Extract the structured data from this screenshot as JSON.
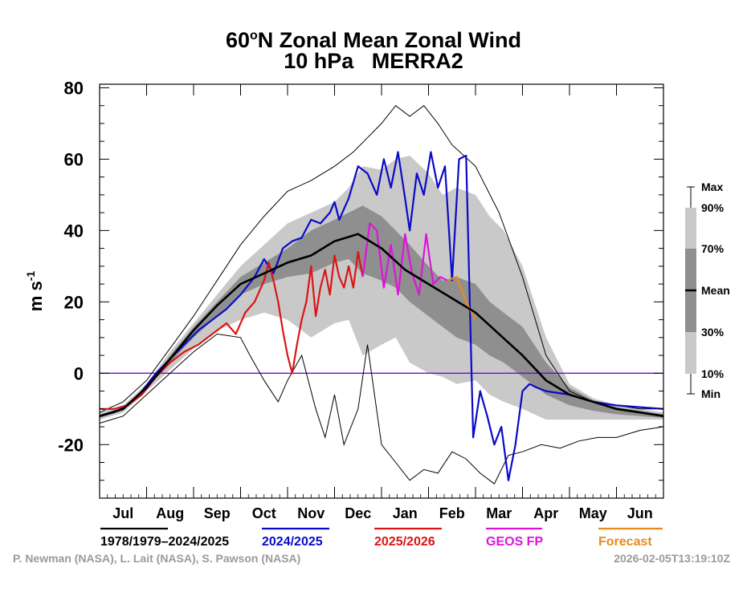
{
  "header": {
    "title_main": "60",
    "title_sup": "o",
    "title_rest": "N Zonal Mean Zonal Wind",
    "subtitle": "10 hPa   MERRA2"
  },
  "credits": {
    "authors": "P. Newman (NASA), L. Lait (NASA), S. Pawson (NASA)",
    "timestamp": "2026-02-05T13:19:10Z"
  },
  "colors": {
    "mean": "#000000",
    "climatology_line": "#000000",
    "season_2024": "#0a0ac8",
    "season_2025": "#dc1414",
    "geos_fp": "#dc14dc",
    "forecast": "#e68a1e",
    "zero_line": "#6a0dd6",
    "band_10_90": "#c9c9c9",
    "band_30_70": "#8f8f8f"
  },
  "chart_data": {
    "type": "line",
    "title": "60oN Zonal Mean Zonal Wind",
    "subtitle": "10 hPa   MERRA2",
    "ylabel": "m s-1",
    "ylabel_base": "m s",
    "ylabel_sup": "-1",
    "ylim": [
      -35,
      81
    ],
    "yticks": [
      -20,
      0,
      20,
      40,
      60,
      80
    ],
    "xlim": [
      0,
      12
    ],
    "months": [
      "Jul",
      "Aug",
      "Sep",
      "Oct",
      "Nov",
      "Dec",
      "Jan",
      "Feb",
      "Mar",
      "Apr",
      "May",
      "Jun"
    ],
    "grid": false,
    "reference_line": 0,
    "colorbar": {
      "labels": [
        "Max",
        "90%",
        "70%",
        "Mean",
        "30%",
        "10%",
        "Min"
      ]
    },
    "legend": [
      {
        "label": "1978/1979–2024/2025",
        "color": "#000000"
      },
      {
        "label": "2024/2025",
        "color": "#0a0ac8"
      },
      {
        "label": "2025/2026",
        "color": "#dc1414"
      },
      {
        "label": "GEOS FP",
        "color": "#dc14dc"
      },
      {
        "label": "Forecast",
        "color": "#e68a1e"
      }
    ],
    "series": [
      {
        "name": "1978/1979–2024/2025",
        "role": "mean",
        "x": [
          0,
          0.5,
          1,
          1.5,
          2,
          2.5,
          3,
          3.5,
          4,
          4.5,
          5,
          5.5,
          6,
          6.5,
          7,
          7.5,
          8,
          8.5,
          9,
          9.5,
          10,
          10.5,
          11,
          11.5,
          12
        ],
        "y": [
          -12,
          -10,
          -4,
          4,
          12,
          19,
          25,
          28,
          31,
          33,
          37,
          39,
          35,
          29,
          25,
          21,
          17,
          11,
          5,
          -2,
          -6,
          -8,
          -10,
          -11,
          -12
        ]
      },
      {
        "name": "Max",
        "role": "max",
        "x": [
          0,
          0.5,
          1,
          1.5,
          2,
          2.5,
          3,
          3.5,
          4,
          4.5,
          5,
          5.4,
          5.7,
          6,
          6.3,
          6.6,
          6.9,
          7.2,
          7.5,
          8,
          8.5,
          9,
          9.5,
          10,
          10.5,
          11,
          11.5,
          12
        ],
        "y": [
          -11,
          -8,
          -2,
          7,
          16,
          26,
          36,
          44,
          51,
          54,
          58,
          62,
          66,
          70,
          75,
          72,
          75,
          70,
          64,
          58,
          45,
          27,
          5,
          -5,
          -8,
          -9,
          -10,
          -10
        ]
      },
      {
        "name": "Min",
        "role": "min",
        "x": [
          0,
          0.5,
          1,
          1.5,
          2,
          2.5,
          3,
          3.2,
          3.5,
          3.8,
          4,
          4.3,
          4.6,
          4.8,
          5,
          5.2,
          5.5,
          5.7,
          6,
          6.3,
          6.6,
          6.9,
          7.2,
          7.5,
          7.8,
          8.1,
          8.4,
          8.7,
          9,
          9.4,
          9.8,
          10.2,
          10.6,
          11,
          11.5,
          12
        ],
        "y": [
          -14,
          -12,
          -6,
          0,
          6,
          11,
          10,
          5,
          -2,
          -8,
          -2,
          5,
          -10,
          -18,
          -6,
          -20,
          -10,
          8,
          -20,
          -25,
          -30,
          -27,
          -28,
          -22,
          -24,
          -28,
          -31,
          -23,
          -22,
          -20,
          -21,
          -19,
          -18,
          -18,
          -16,
          -15
        ]
      },
      {
        "name": "90%",
        "role": "p90",
        "x": [
          0,
          0.5,
          1,
          1.5,
          2,
          2.5,
          3,
          3.5,
          4,
          4.5,
          5,
          5.3,
          5.6,
          6,
          6.3,
          6.6,
          7,
          7.3,
          7.6,
          8,
          8.3,
          8.6,
          9,
          9.5,
          10,
          10.5,
          11,
          11.5,
          12
        ],
        "y": [
          -11,
          -9,
          -3,
          6,
          14,
          22,
          30,
          36,
          42,
          45,
          48,
          52,
          58,
          57,
          60,
          61,
          56,
          50,
          52,
          50,
          44,
          40,
          30,
          10,
          -3,
          -7,
          -9,
          -10,
          -11
        ]
      },
      {
        "name": "70%",
        "role": "p70",
        "x": [
          0,
          0.5,
          1,
          1.5,
          2,
          2.5,
          3,
          3.5,
          4,
          4.5,
          5,
          5.3,
          5.6,
          6,
          6.3,
          6.6,
          7,
          7.3,
          7.6,
          8,
          8.3,
          8.6,
          9,
          9.5,
          10,
          10.5,
          11,
          11.5,
          12
        ],
        "y": [
          -12,
          -9.5,
          -3.5,
          5,
          13,
          20,
          27,
          31,
          35,
          40,
          43,
          45,
          47,
          44,
          40,
          36,
          30,
          26,
          27,
          25,
          20,
          17,
          13,
          3,
          -4,
          -7.5,
          -9.5,
          -10.5,
          -11.5
        ]
      },
      {
        "name": "30%",
        "role": "p30",
        "x": [
          0,
          0.5,
          1,
          1.5,
          2,
          2.5,
          3,
          3.5,
          4,
          4.5,
          5,
          5.3,
          5.6,
          6,
          6.3,
          6.6,
          7,
          7.3,
          7.6,
          8,
          8.3,
          8.6,
          9,
          9.5,
          10,
          10.5,
          11,
          11.5,
          12
        ],
        "y": [
          -12.5,
          -10.5,
          -4.5,
          3,
          10,
          16,
          22,
          25,
          27,
          28,
          31,
          32,
          28,
          26,
          24,
          20,
          16,
          13,
          10,
          8,
          5,
          3,
          -1,
          -6,
          -9,
          -10.5,
          -11.5,
          -12,
          -12.5
        ]
      },
      {
        "name": "10%",
        "role": "p10",
        "x": [
          0,
          0.5,
          1,
          1.5,
          2,
          2.5,
          3,
          3.5,
          4,
          4.5,
          5,
          5.3,
          5.6,
          6,
          6.3,
          6.6,
          7,
          7.3,
          7.6,
          8,
          8.3,
          8.6,
          9,
          9.5,
          10,
          10.5,
          11,
          11.5,
          12
        ],
        "y": [
          -13,
          -11,
          -5,
          1,
          7,
          12,
          15,
          17,
          15,
          10,
          14,
          15,
          5,
          8,
          10,
          3,
          0,
          -1,
          -3,
          -2,
          -6,
          -8,
          -10,
          -13,
          -13,
          -13,
          -13,
          -13,
          -13
        ]
      },
      {
        "name": "2024/2025",
        "role": "season",
        "x": [
          0,
          0.3,
          0.6,
          0.9,
          1.2,
          1.5,
          1.8,
          2.1,
          2.4,
          2.7,
          3,
          3.3,
          3.5,
          3.7,
          3.9,
          4.1,
          4.3,
          4.5,
          4.7,
          4.9,
          5,
          5.1,
          5.3,
          5.5,
          5.7,
          5.9,
          6.05,
          6.2,
          6.35,
          6.5,
          6.6,
          6.75,
          6.9,
          7.05,
          7.2,
          7.35,
          7.5,
          7.65,
          7.8,
          7.95,
          8.1,
          8.25,
          8.4,
          8.55,
          8.7,
          8.85,
          9,
          9.15,
          9.3,
          9.5,
          10,
          10.5,
          11,
          11.5,
          12
        ],
        "y": [
          -12,
          -11,
          -9,
          -5,
          0,
          4,
          8,
          12,
          15,
          18,
          22,
          27,
          32,
          28,
          35,
          37,
          38,
          43,
          42,
          45,
          48,
          43,
          49,
          58,
          56,
          50,
          60,
          52,
          62,
          49,
          40,
          56,
          50,
          62,
          52,
          58,
          26,
          60,
          61,
          -18,
          -5,
          -12,
          -20,
          -15,
          -30,
          -20,
          -5,
          -3,
          -4,
          -5,
          -6,
          -8,
          -9,
          -9.5,
          -10
        ]
      },
      {
        "name": "2025/2026",
        "role": "season",
        "x": [
          0,
          0.3,
          0.6,
          0.9,
          1.2,
          1.5,
          1.8,
          2.1,
          2.4,
          2.7,
          2.9,
          3.1,
          3.3,
          3.5,
          3.6,
          3.7,
          3.8,
          3.9,
          4.0,
          4.1,
          4.2,
          4.3,
          4.4,
          4.5,
          4.6,
          4.7,
          4.8,
          4.9,
          5.0,
          5.1,
          5.2,
          5.3,
          5.4,
          5.5,
          5.6
        ],
        "y": [
          -10,
          -10,
          -9,
          -6,
          -1,
          3,
          6,
          8,
          11,
          14,
          11,
          17,
          20,
          26,
          31,
          26,
          20,
          12,
          5,
          0,
          8,
          15,
          20,
          30,
          16,
          24,
          29,
          22,
          33,
          27,
          24,
          30,
          24,
          34,
          27
        ]
      },
      {
        "name": "GEOS FP",
        "role": "season",
        "x": [
          5.6,
          5.75,
          5.9,
          6.05,
          6.2,
          6.35,
          6.5,
          6.65,
          6.8,
          6.95,
          7.1,
          7.25,
          7.4
        ],
        "y": [
          27,
          42,
          40,
          24,
          36,
          22,
          39,
          28,
          22,
          39,
          25,
          27,
          26
        ]
      },
      {
        "name": "Forecast",
        "role": "season",
        "x": [
          7.4,
          7.6,
          7.8,
          8.0
        ],
        "y": [
          26,
          27,
          20,
          15
        ]
      }
    ]
  }
}
